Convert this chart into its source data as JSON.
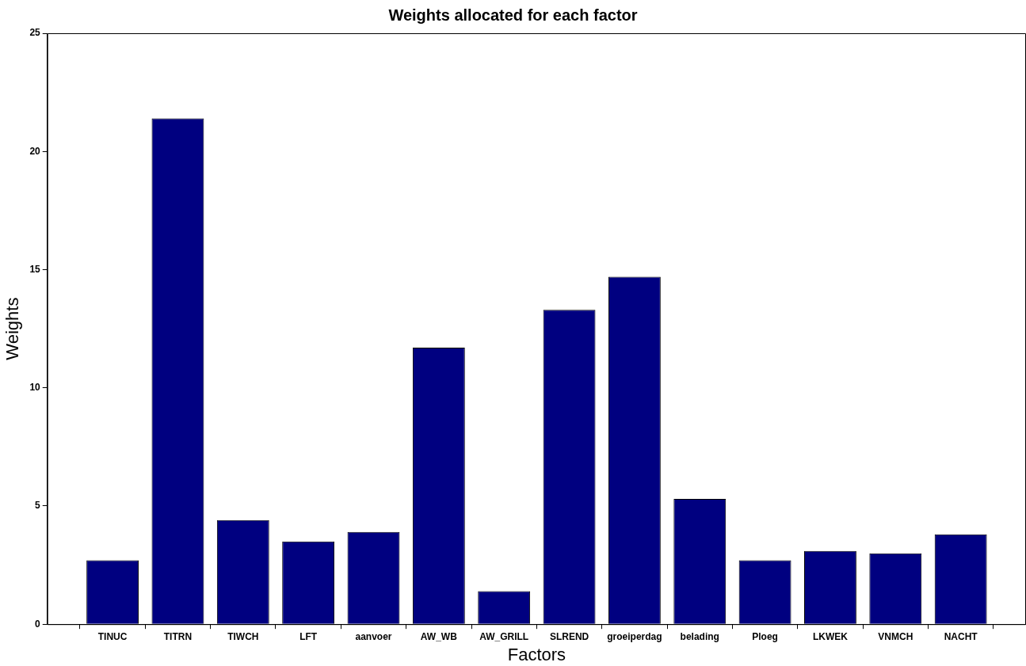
{
  "chart_data": {
    "type": "bar",
    "title": "Weights allocated for each factor",
    "xlabel": "Factors",
    "ylabel": "Weights",
    "categories": [
      "TINUC",
      "TITRN",
      "TIWCH",
      "LFT",
      "aanvoer",
      "AW_WB",
      "AW_GRILL",
      "SLREND",
      "groeiperdag",
      "belading",
      "Ploeg",
      "LKWEK",
      "VNMCH",
      "NACHT"
    ],
    "values": [
      2.7,
      21.4,
      4.4,
      3.5,
      3.9,
      11.7,
      1.4,
      13.3,
      14.7,
      5.3,
      2.7,
      3.1,
      3.0,
      3.8
    ],
    "color": "#000080",
    "ylim": [
      0,
      25
    ],
    "yticks": [
      0,
      5,
      10,
      15,
      20,
      25
    ],
    "grid": false,
    "legend": false
  }
}
